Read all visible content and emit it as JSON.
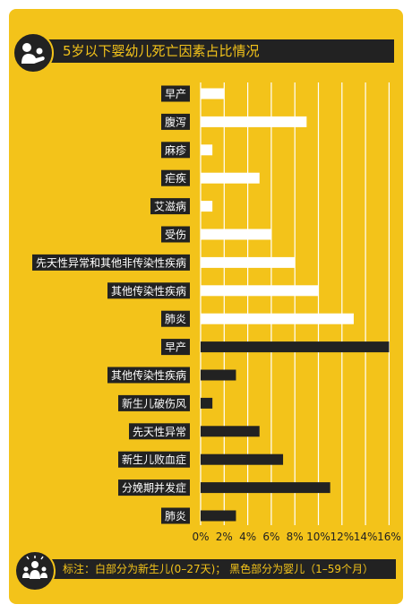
{
  "title": "5岁以下婴幼儿死亡因素占比情况",
  "note": "标注：白部分为新生儿(0–27天)；  黑色部分为婴儿（1–59个月）",
  "colors": {
    "background": "#f3c31a",
    "newborn_bar": "#ffffff",
    "infant_bar": "#222222",
    "gridline": "#ffffff",
    "label_bg": "#222222"
  },
  "chart_data": {
    "type": "bar",
    "orientation": "horizontal",
    "xlim": [
      0,
      16
    ],
    "x_ticks": [
      "0%",
      "2%",
      "4%",
      "6%",
      "8%",
      "10%",
      "12%",
      "14%",
      "16%"
    ],
    "grid": true,
    "series": [
      {
        "color": "#ffffff",
        "categories": [
          "早产",
          "腹泻",
          "麻疹",
          "疟疾",
          "艾滋病",
          "受伤",
          "先天性异常和其他非传染性疾病",
          "其他传染性疾病",
          "肺炎"
        ],
        "values": [
          2,
          9,
          1,
          5,
          1,
          6,
          8,
          10,
          13
        ]
      },
      {
        "color": "#222222",
        "categories": [
          "早产",
          "其他传染性疾病",
          "新生儿破伤风",
          "先天性异常",
          "新生儿败血症",
          "分娩期并发症",
          "肺炎"
        ],
        "values": [
          16,
          3,
          1,
          5,
          7,
          11,
          3
        ]
      }
    ]
  }
}
